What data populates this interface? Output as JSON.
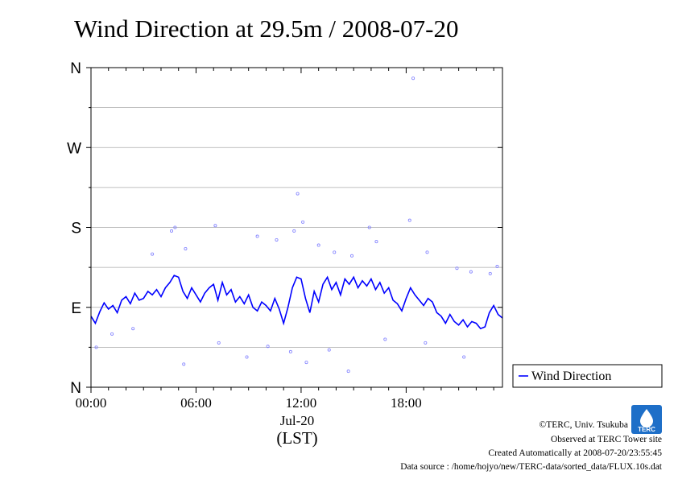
{
  "chart_data": {
    "type": "scatter",
    "title": "Wind Direction at 29.5m / 2008-07-20",
    "xlabel_date": "Jul-20",
    "xlabel_unit": "(LST)",
    "x_unit": "hour",
    "xlim": [
      0,
      23.5
    ],
    "x_ticks": [
      {
        "value": 0,
        "label": "00:00"
      },
      {
        "value": 6,
        "label": "06:00"
      },
      {
        "value": 12,
        "label": "12:00"
      },
      {
        "value": 18,
        "label": "18:00"
      }
    ],
    "y_unit": "degree",
    "ylim": [
      0,
      360
    ],
    "y_ticks": [
      {
        "value": 0,
        "label": "N"
      },
      {
        "value": 90,
        "label": "E"
      },
      {
        "value": 180,
        "label": "S"
      },
      {
        "value": 270,
        "label": "W"
      },
      {
        "value": 360,
        "label": "N"
      }
    ],
    "minor_grid": [
      45,
      135,
      225,
      315
    ],
    "grid": true,
    "legend_position": "right",
    "colors": {
      "line": "#0000ff",
      "points": "#8080ff",
      "grid": "#aaaaaa"
    },
    "series": [
      {
        "name": "Wind Direction",
        "style": "line",
        "x": [
          0.0,
          0.25,
          0.5,
          0.75,
          1.0,
          1.25,
          1.5,
          1.75,
          2.0,
          2.25,
          2.5,
          2.75,
          3.0,
          3.25,
          3.5,
          3.75,
          4.0,
          4.25,
          4.5,
          4.75,
          5.0,
          5.25,
          5.5,
          5.75,
          6.0,
          6.25,
          6.5,
          6.75,
          7.0,
          7.25,
          7.5,
          7.75,
          8.0,
          8.25,
          8.5,
          8.75,
          9.0,
          9.25,
          9.5,
          9.75,
          10.0,
          10.25,
          10.5,
          10.75,
          11.0,
          11.25,
          11.5,
          11.75,
          12.0,
          12.25,
          12.5,
          12.75,
          13.0,
          13.25,
          13.5,
          13.75,
          14.0,
          14.25,
          14.5,
          14.75,
          15.0,
          15.25,
          15.5,
          15.75,
          16.0,
          16.25,
          16.5,
          16.75,
          17.0,
          17.25,
          17.5,
          17.75,
          18.0,
          18.25,
          18.5,
          18.75,
          19.0,
          19.25,
          19.5,
          19.75,
          20.0,
          20.25,
          20.5,
          20.75,
          21.0,
          21.25,
          21.5,
          21.75,
          22.0,
          22.25,
          22.5,
          22.75,
          23.0,
          23.25,
          23.5
        ],
        "y": [
          80,
          72,
          85,
          95,
          88,
          92,
          84,
          98,
          102,
          94,
          106,
          98,
          100,
          108,
          104,
          110,
          102,
          112,
          118,
          126,
          124,
          108,
          100,
          112,
          104,
          96,
          106,
          112,
          116,
          98,
          118,
          104,
          110,
          96,
          102,
          94,
          104,
          90,
          86,
          96,
          92,
          86,
          100,
          88,
          72,
          90,
          112,
          124,
          122,
          100,
          84,
          108,
          96,
          116,
          124,
          110,
          118,
          104,
          122,
          116,
          124,
          112,
          120,
          114,
          122,
          110,
          118,
          106,
          112,
          98,
          94,
          86,
          100,
          112,
          104,
          98,
          92,
          100,
          96,
          84,
          80,
          72,
          82,
          74,
          70,
          76,
          68,
          74,
          72,
          66,
          68,
          84,
          92,
          82,
          78
        ]
      },
      {
        "name": "",
        "style": "points",
        "x": [
          3.5,
          4.6,
          4.8,
          5.4,
          7.1,
          9.5,
          10.6,
          11.6,
          11.8,
          12.1,
          13.0,
          13.9,
          14.9,
          15.9,
          16.3,
          18.2,
          18.4,
          19.2,
          20.9,
          21.7,
          22.8,
          23.2,
          1.2,
          2.4,
          5.3,
          7.3,
          8.9,
          10.1,
          11.4,
          12.3,
          13.6,
          14.7,
          16.8,
          19.1,
          21.3,
          0.3
        ],
        "y": [
          150,
          176,
          180,
          156,
          182,
          170,
          166,
          176,
          218,
          186,
          160,
          152,
          148,
          180,
          164,
          188,
          348,
          152,
          134,
          130,
          128,
          136,
          60,
          66,
          26,
          50,
          34,
          46,
          40,
          28,
          42,
          18,
          54,
          50,
          34,
          45
        ]
      }
    ],
    "legend": {
      "label": "Wind Direction"
    },
    "credits": [
      "©TERC, Univ. Tsukuba",
      "Observed at TERC Tower site",
      "Created Automatically at 2008-07-20/23:55:45",
      "Data source : /home/hojyo/new/TERC-data/sorted_data/FLUX.10s.dat"
    ],
    "logo_text": "TERC"
  }
}
